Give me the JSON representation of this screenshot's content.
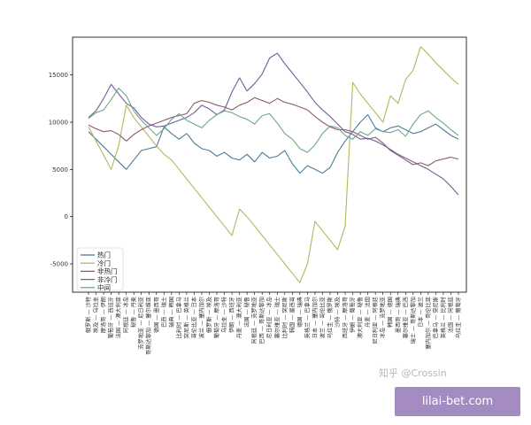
{
  "chart_data": {
    "type": "line",
    "title": "",
    "xlabel": "",
    "ylabel": "",
    "ylim": [
      -8000,
      19000
    ],
    "yticks": [
      -5000,
      0,
      5000,
      10000,
      15000
    ],
    "grid": false,
    "legend_position": "lower-left",
    "categories": [
      "俄罗斯 — 沙特",
      "埃及 — 乌拉圭",
      "摩洛哥 — 伊朗",
      "葡萄牙 — 西班牙",
      "法国 — 澳大利亚",
      "阿根廷 — 冰岛",
      "秘鲁 — 丹麦",
      "克罗地亚 — 尼日利亚",
      "哥斯达黎加 — 塞尔维亚",
      "德国 — 墨西哥",
      "巴西 — 瑞士",
      "瑞典 — 韩国",
      "比利时 — 巴拿马",
      "突尼斯 — 英格兰",
      "哥伦比亚 — 日本",
      "波兰 — 塞内加尔",
      "俄罗斯 — 埃及",
      "葡萄牙 — 摩洛哥",
      "乌拉圭 — 沙特",
      "伊朗 — 西班牙",
      "丹麦 — 澳大利亚",
      "法国 — 秘鲁",
      "阿根廷 — 克罗地亚",
      "巴西 — 哥斯达黎加",
      "尼日利亚 — 冰岛",
      "塞尔维亚 — 瑞士",
      "比利时 — 突尼斯",
      "韩国 — 墨西哥",
      "德国 — 瑞典",
      "英格兰 — 巴拿马",
      "日本 — 塞内加尔",
      "波兰 — 哥伦比亚",
      "乌拉圭 — 俄罗斯",
      "沙特 — 埃及",
      "西班牙 — 摩洛哥",
      "伊朗 — 葡萄牙",
      "澳大利亚 — 秘鲁",
      "丹麦 — 法国",
      "尼日利亚 — 阿根廷",
      "冰岛 — 克罗地亚",
      "韩国 — 德国",
      "墨西哥 — 瑞典",
      "塞尔维亚 — 巴西",
      "瑞士 — 哥斯达黎加",
      "日本 — 波兰",
      "塞内加尔 — 哥伦比亚",
      "巴拿马 — 突尼斯",
      "英格兰 — 比利时",
      "法国 — 阿根廷",
      "乌拉圭 — 葡萄牙"
    ],
    "series": [
      {
        "name": "热门",
        "color": "#4c7c99",
        "values": [
          9000,
          8200,
          7400,
          6600,
          5800,
          5000,
          6000,
          7000,
          7200,
          7400,
          9500,
          8800,
          8200,
          8800,
          7800,
          7200,
          7000,
          6400,
          6800,
          6200,
          6000,
          6600,
          5800,
          6800,
          6200,
          6400,
          7000,
          5600,
          4600,
          5400,
          5000,
          4600,
          5200,
          6800,
          8000,
          9000,
          10000,
          10800,
          9400,
          9000,
          9400,
          9600,
          9200,
          8800,
          9000,
          9400,
          9800,
          9200,
          8600,
          8200
        ]
      },
      {
        "name": "冷门",
        "color": "#b5b55e",
        "values": [
          9500,
          8000,
          6500,
          5000,
          7500,
          11800,
          10500,
          9500,
          8500,
          7500,
          6600,
          6000,
          5000,
          4000,
          3000,
          2000,
          1000,
          0,
          -1000,
          -2000,
          800,
          0,
          -1000,
          -2000,
          -3000,
          -4000,
          -5000,
          -6000,
          -7000,
          -5000,
          -500,
          -1500,
          -2500,
          -3500,
          -1000,
          14200,
          13000,
          12000,
          11000,
          10000,
          12800,
          12000,
          14500,
          15500,
          18000,
          17200,
          16300,
          15500,
          14700,
          14000
        ]
      },
      {
        "name": "非热门",
        "color": "#8a5d6c",
        "values": [
          9700,
          9300,
          9000,
          9100,
          8700,
          8000,
          8700,
          9200,
          9600,
          9900,
          10200,
          10500,
          10700,
          10900,
          12000,
          12300,
          12100,
          11800,
          11600,
          11300,
          11800,
          12100,
          12600,
          12300,
          12000,
          12500,
          12100,
          11900,
          11600,
          11300,
          10600,
          10000,
          9500,
          9200,
          9200,
          9000,
          8600,
          8200,
          8400,
          7800,
          7000,
          6500,
          6000,
          5500,
          5700,
          5400,
          5900,
          6100,
          6300,
          6100
        ]
      },
      {
        "name": "非冷门",
        "color": "#6e6299",
        "values": [
          10500,
          11200,
          12500,
          14000,
          13000,
          12000,
          11500,
          10500,
          9800,
          9500,
          9600,
          9900,
          10200,
          10500,
          11000,
          11800,
          11400,
          10800,
          11300,
          13200,
          14700,
          13300,
          14100,
          15100,
          16800,
          17300,
          16200,
          15200,
          14200,
          13200,
          12100,
          11300,
          10600,
          9800,
          9000,
          8700,
          8200,
          8300,
          8000,
          7600,
          7100,
          6600,
          6200,
          5800,
          5400,
          5000,
          4500,
          4000,
          3200,
          2300
        ]
      },
      {
        "name": "中间",
        "color": "#6ea68e",
        "values": [
          10400,
          11000,
          11300,
          12400,
          13600,
          12800,
          11200,
          10200,
          9400,
          8600,
          9300,
          10300,
          10900,
          10200,
          9800,
          9400,
          10200,
          10800,
          11200,
          11000,
          10600,
          10300,
          9800,
          10700,
          10900,
          9900,
          8800,
          8200,
          7200,
          6800,
          7600,
          8800,
          9600,
          9400,
          8600,
          8200,
          9000,
          8600,
          9300,
          9000,
          8900,
          9200,
          8500,
          9800,
          10800,
          11200,
          10500,
          9900,
          9200,
          8600
        ]
      }
    ]
  },
  "watermark": "知乎 @Crossin",
  "site_badge": "lilai-bet.com"
}
